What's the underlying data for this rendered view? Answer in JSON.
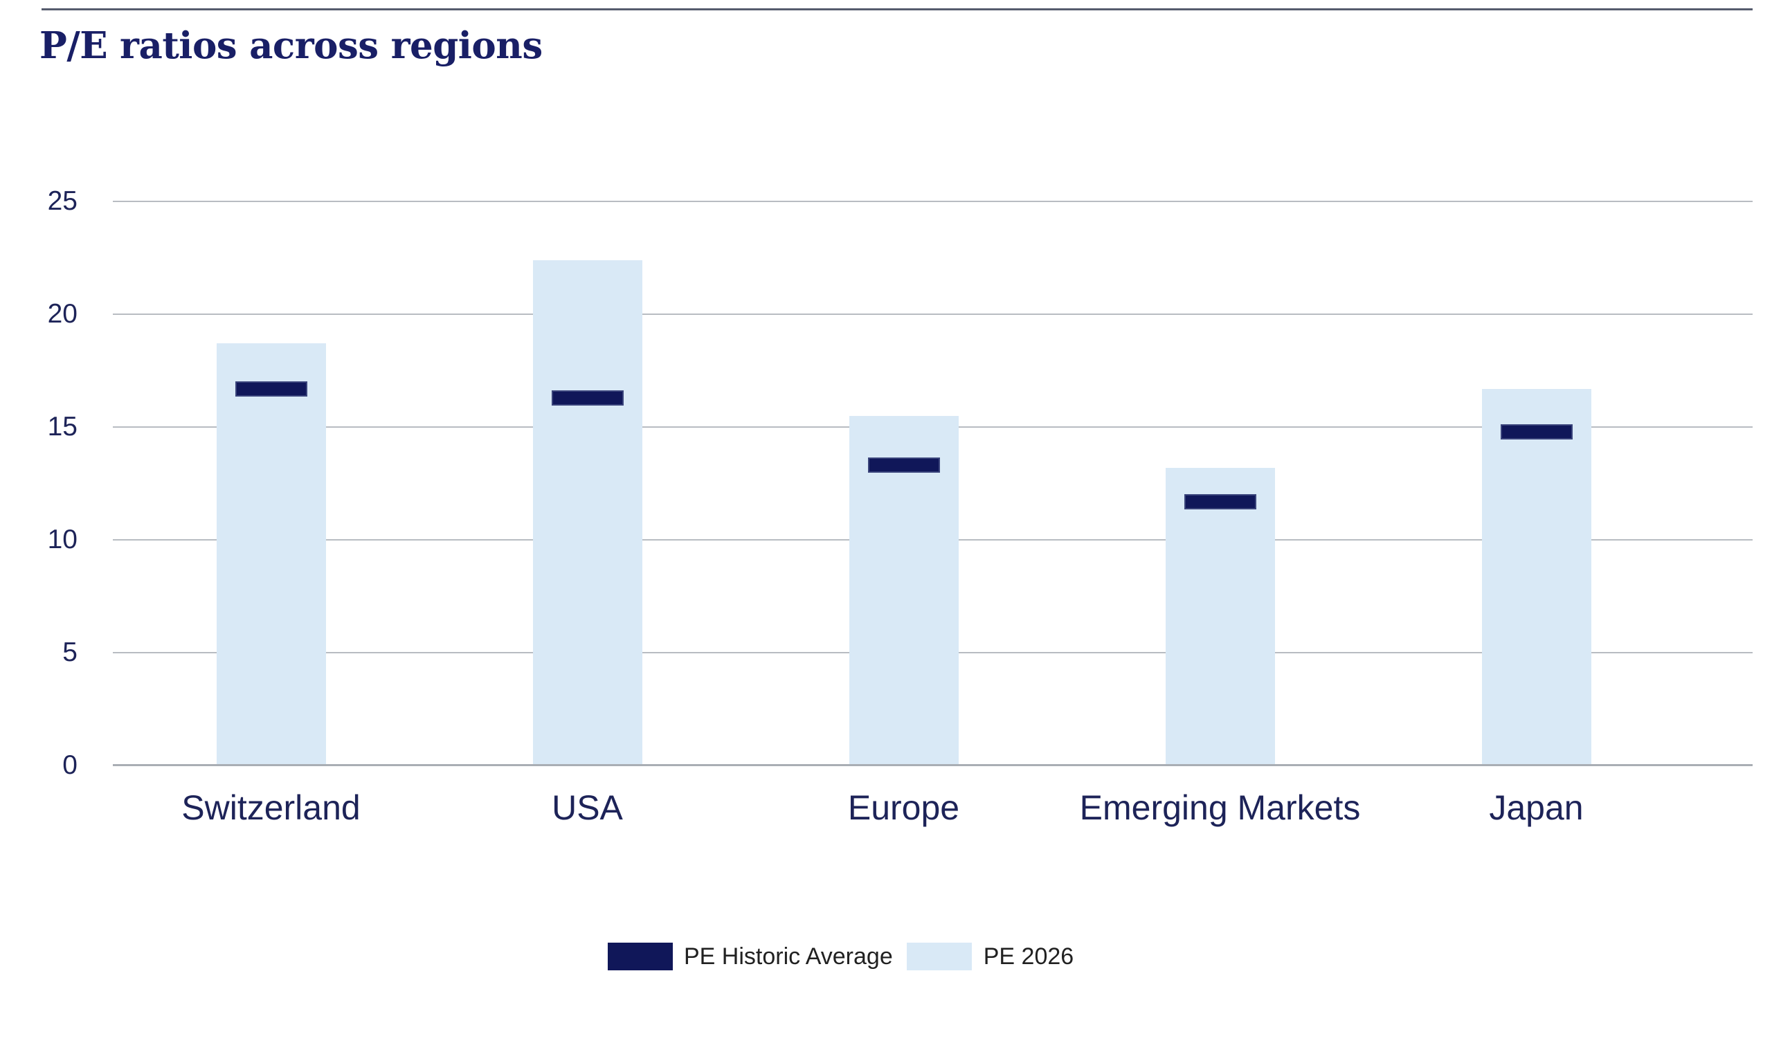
{
  "page": {
    "title": "P/E ratios across regions"
  },
  "colors": {
    "top_rule": "#555b6d",
    "title_text": "#191f66",
    "axis_text": "#1d2358",
    "legend_text": "#212121",
    "gridline": "#b8bcc2",
    "baseline": "#a9aeb4",
    "bar_fill": "#d9e9f6",
    "marker_fill": "#101759",
    "marker_edge": "rgba(110,125,165,0.45)"
  },
  "chart_data": {
    "type": "bar",
    "title": "P/E ratios across regions",
    "categories": [
      "Switzerland",
      "USA",
      "Europe",
      "Emerging Markets",
      "Japan"
    ],
    "series": [
      {
        "name": "PE Historic Average",
        "style": "dash-marker",
        "color": "#101759",
        "values": [
          16.7,
          16.3,
          13.3,
          11.7,
          14.8
        ]
      },
      {
        "name": "PE 2026",
        "style": "bar",
        "color": "#d9e9f6",
        "values": [
          18.7,
          22.4,
          15.5,
          13.2,
          16.7
        ]
      }
    ],
    "ylim": [
      0,
      25
    ],
    "yticks": [
      0,
      5,
      10,
      15,
      20,
      25
    ],
    "xlabel": "",
    "ylabel": "",
    "grid": true,
    "legend_position": "bottom-center"
  }
}
